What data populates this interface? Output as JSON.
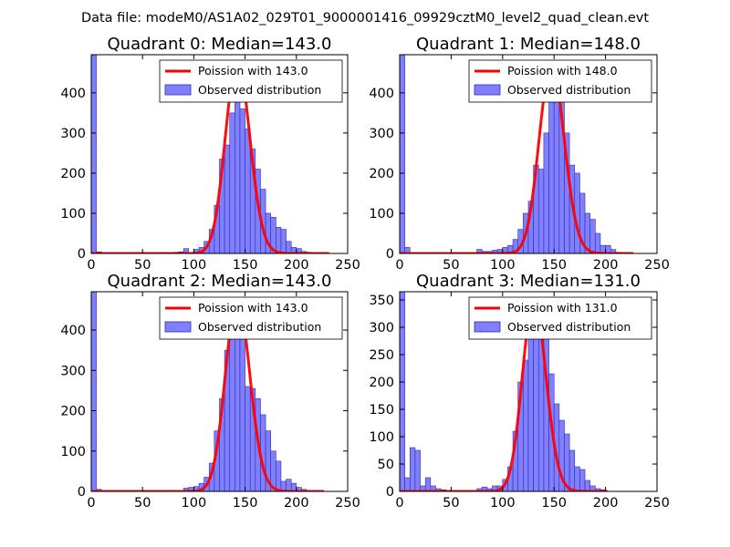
{
  "figure": {
    "suptitle": "Data file: modeM0/AS1A02_029T01_9000001416_09929cztM0_level2_quad_clean.evt"
  },
  "colors": {
    "hist_fill": "#8080ff",
    "hist_edge": "#2b2bb0",
    "poisson_line": "#ff0000",
    "axes": "#000000"
  },
  "chart_data": [
    {
      "type": "bar",
      "title": "Quadrant 0: Median=143.0",
      "xlim": [
        0,
        250
      ],
      "ylim": [
        0,
        495
      ],
      "xticks": [
        0,
        50,
        100,
        150,
        200,
        250
      ],
      "yticks": [
        0,
        100,
        200,
        300,
        400
      ],
      "bin_width": 5,
      "legend": {
        "location": "top-right",
        "line_label": "Poission with 143.0",
        "bar_label": "Observed distribution"
      },
      "histogram": [
        {
          "x": 0,
          "v": 495
        },
        {
          "x": 5,
          "v": 4
        },
        {
          "x": 65,
          "v": 1
        },
        {
          "x": 70,
          "v": 2
        },
        {
          "x": 80,
          "v": 3
        },
        {
          "x": 85,
          "v": 4
        },
        {
          "x": 90,
          "v": 12
        },
        {
          "x": 100,
          "v": 10
        },
        {
          "x": 105,
          "v": 15
        },
        {
          "x": 110,
          "v": 30
        },
        {
          "x": 115,
          "v": 60
        },
        {
          "x": 120,
          "v": 120
        },
        {
          "x": 125,
          "v": 235
        },
        {
          "x": 130,
          "v": 270
        },
        {
          "x": 135,
          "v": 350
        },
        {
          "x": 140,
          "v": 440
        },
        {
          "x": 145,
          "v": 360
        },
        {
          "x": 150,
          "v": 310
        },
        {
          "x": 155,
          "v": 260
        },
        {
          "x": 160,
          "v": 210
        },
        {
          "x": 165,
          "v": 160
        },
        {
          "x": 170,
          "v": 100
        },
        {
          "x": 175,
          "v": 90
        },
        {
          "x": 180,
          "v": 65
        },
        {
          "x": 185,
          "v": 60
        },
        {
          "x": 190,
          "v": 30
        },
        {
          "x": 195,
          "v": 15
        },
        {
          "x": 200,
          "v": 12
        },
        {
          "x": 205,
          "v": 5
        },
        {
          "x": 210,
          "v": 3
        }
      ],
      "poisson": {
        "mean": 143.0,
        "amplitude": 478,
        "x_range": [
          0,
          232
        ]
      }
    },
    {
      "type": "bar",
      "title": "Quadrant 1: Median=148.0",
      "xlim": [
        0,
        250
      ],
      "ylim": [
        0,
        495
      ],
      "xticks": [
        0,
        50,
        100,
        150,
        200,
        250
      ],
      "yticks": [
        0,
        100,
        200,
        300,
        400
      ],
      "bin_width": 5,
      "legend": {
        "location": "top-right",
        "line_label": "Poission with 148.0",
        "bar_label": "Observed distribution"
      },
      "histogram": [
        {
          "x": 0,
          "v": 495
        },
        {
          "x": 5,
          "v": 15
        },
        {
          "x": 75,
          "v": 10
        },
        {
          "x": 80,
          "v": 5
        },
        {
          "x": 85,
          "v": 5
        },
        {
          "x": 90,
          "v": 8
        },
        {
          "x": 95,
          "v": 10
        },
        {
          "x": 100,
          "v": 15
        },
        {
          "x": 105,
          "v": 20
        },
        {
          "x": 110,
          "v": 35
        },
        {
          "x": 115,
          "v": 60
        },
        {
          "x": 120,
          "v": 100
        },
        {
          "x": 125,
          "v": 130
        },
        {
          "x": 130,
          "v": 220
        },
        {
          "x": 135,
          "v": 210
        },
        {
          "x": 140,
          "v": 300
        },
        {
          "x": 145,
          "v": 380
        },
        {
          "x": 150,
          "v": 415
        },
        {
          "x": 155,
          "v": 380
        },
        {
          "x": 160,
          "v": 300
        },
        {
          "x": 165,
          "v": 220
        },
        {
          "x": 170,
          "v": 200
        },
        {
          "x": 175,
          "v": 150
        },
        {
          "x": 180,
          "v": 100
        },
        {
          "x": 185,
          "v": 85
        },
        {
          "x": 190,
          "v": 50
        },
        {
          "x": 195,
          "v": 20
        },
        {
          "x": 200,
          "v": 20
        },
        {
          "x": 205,
          "v": 10
        },
        {
          "x": 210,
          "v": 3
        }
      ],
      "poisson": {
        "mean": 148.0,
        "amplitude": 470,
        "x_range": [
          0,
          227
        ]
      }
    },
    {
      "type": "bar",
      "title": "Quadrant 2: Median=143.0",
      "xlim": [
        0,
        250
      ],
      "ylim": [
        0,
        495
      ],
      "xticks": [
        0,
        50,
        100,
        150,
        200,
        250
      ],
      "yticks": [
        0,
        100,
        200,
        300,
        400
      ],
      "bin_width": 5,
      "legend": {
        "location": "top-right",
        "line_label": "Poission with 143.0",
        "bar_label": "Observed distribution"
      },
      "histogram": [
        {
          "x": 0,
          "v": 495
        },
        {
          "x": 5,
          "v": 5
        },
        {
          "x": 80,
          "v": 2
        },
        {
          "x": 90,
          "v": 8
        },
        {
          "x": 95,
          "v": 10
        },
        {
          "x": 100,
          "v": 12
        },
        {
          "x": 105,
          "v": 20
        },
        {
          "x": 110,
          "v": 35
        },
        {
          "x": 115,
          "v": 70
        },
        {
          "x": 120,
          "v": 150
        },
        {
          "x": 125,
          "v": 230
        },
        {
          "x": 130,
          "v": 350
        },
        {
          "x": 135,
          "v": 385
        },
        {
          "x": 140,
          "v": 465
        },
        {
          "x": 145,
          "v": 400
        },
        {
          "x": 150,
          "v": 260
        },
        {
          "x": 155,
          "v": 255
        },
        {
          "x": 160,
          "v": 230
        },
        {
          "x": 165,
          "v": 190
        },
        {
          "x": 170,
          "v": 150
        },
        {
          "x": 175,
          "v": 100
        },
        {
          "x": 180,
          "v": 75
        },
        {
          "x": 185,
          "v": 25
        },
        {
          "x": 190,
          "v": 30
        },
        {
          "x": 195,
          "v": 20
        },
        {
          "x": 200,
          "v": 10
        },
        {
          "x": 205,
          "v": 5
        }
      ],
      "poisson": {
        "mean": 143.0,
        "amplitude": 478,
        "x_range": [
          0,
          227
        ]
      }
    },
    {
      "type": "bar",
      "title": "Quadrant 3: Median=131.0",
      "xlim": [
        0,
        250
      ],
      "ylim": [
        0,
        365
      ],
      "xticks": [
        0,
        50,
        100,
        150,
        200,
        250
      ],
      "yticks": [
        0,
        50,
        100,
        150,
        200,
        250,
        300,
        350
      ],
      "bin_width": 5,
      "legend": {
        "location": "top-right",
        "line_label": "Poission with 131.0",
        "bar_label": "Observed distribution"
      },
      "histogram": [
        {
          "x": 0,
          "v": 365
        },
        {
          "x": 5,
          "v": 25
        },
        {
          "x": 10,
          "v": 80
        },
        {
          "x": 15,
          "v": 75
        },
        {
          "x": 20,
          "v": 10
        },
        {
          "x": 25,
          "v": 25
        },
        {
          "x": 30,
          "v": 10
        },
        {
          "x": 35,
          "v": 5
        },
        {
          "x": 40,
          "v": 3
        },
        {
          "x": 45,
          "v": 2
        },
        {
          "x": 75,
          "v": 5
        },
        {
          "x": 80,
          "v": 8
        },
        {
          "x": 85,
          "v": 5
        },
        {
          "x": 90,
          "v": 10
        },
        {
          "x": 95,
          "v": 10
        },
        {
          "x": 100,
          "v": 22
        },
        {
          "x": 105,
          "v": 45
        },
        {
          "x": 110,
          "v": 110
        },
        {
          "x": 115,
          "v": 200
        },
        {
          "x": 120,
          "v": 240
        },
        {
          "x": 125,
          "v": 340
        },
        {
          "x": 130,
          "v": 320
        },
        {
          "x": 135,
          "v": 330
        },
        {
          "x": 140,
          "v": 290
        },
        {
          "x": 145,
          "v": 215
        },
        {
          "x": 150,
          "v": 160
        },
        {
          "x": 155,
          "v": 130
        },
        {
          "x": 160,
          "v": 105
        },
        {
          "x": 165,
          "v": 75
        },
        {
          "x": 170,
          "v": 45
        },
        {
          "x": 175,
          "v": 40
        },
        {
          "x": 180,
          "v": 20
        },
        {
          "x": 185,
          "v": 10
        },
        {
          "x": 190,
          "v": 5
        },
        {
          "x": 195,
          "v": 3
        }
      ],
      "poisson": {
        "mean": 131.0,
        "amplitude": 350,
        "x_range": [
          0,
          202
        ]
      }
    }
  ]
}
